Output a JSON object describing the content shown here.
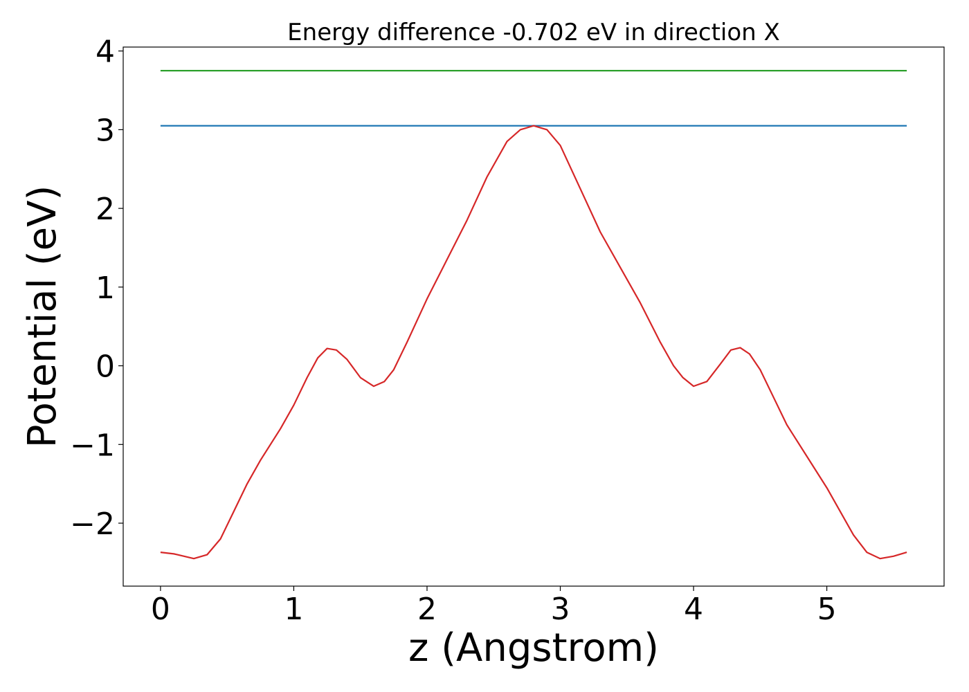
{
  "chart_data": {
    "type": "line",
    "title": "Energy difference -0.702 eV in direction X",
    "xlabel": "z (Angstrom)",
    "ylabel": "Potential (eV)",
    "xlim": [
      -0.28,
      5.88
    ],
    "ylim": [
      -2.8,
      4.05
    ],
    "xticks": [
      0,
      1,
      2,
      3,
      4,
      5
    ],
    "xtick_labels": [
      "0",
      "1",
      "2",
      "3",
      "4",
      "5"
    ],
    "yticks": [
      -2,
      -1,
      0,
      1,
      2,
      3,
      4
    ],
    "ytick_labels": [
      "−2",
      "−1",
      "0",
      "1",
      "2",
      "3",
      "4"
    ],
    "grid": false,
    "series": [
      {
        "color": "#2ca02c",
        "x": [
          0,
          5.6
        ],
        "y": [
          3.75,
          3.75
        ]
      },
      {
        "color": "#1f77b4",
        "x": [
          0,
          5.6
        ],
        "y": [
          3.05,
          3.05
        ]
      },
      {
        "color": "#d62728",
        "x": [
          0,
          0.1,
          0.25,
          0.35,
          0.45,
          0.55,
          0.65,
          0.75,
          0.9,
          1.0,
          1.1,
          1.18,
          1.25,
          1.32,
          1.4,
          1.5,
          1.6,
          1.68,
          1.75,
          1.85,
          2.0,
          2.15,
          2.3,
          2.45,
          2.6,
          2.7,
          2.8,
          2.9,
          3.0,
          3.15,
          3.3,
          3.45,
          3.6,
          3.75,
          3.85,
          3.92,
          4.0,
          4.1,
          4.2,
          4.28,
          4.35,
          4.42,
          4.5,
          4.6,
          4.7,
          4.85,
          5.0,
          5.1,
          5.2,
          5.3,
          5.4,
          5.5,
          5.6
        ],
        "y": [
          -2.37,
          -2.39,
          -2.45,
          -2.4,
          -2.2,
          -1.85,
          -1.5,
          -1.2,
          -0.8,
          -0.5,
          -0.15,
          0.1,
          0.22,
          0.2,
          0.08,
          -0.15,
          -0.26,
          -0.2,
          -0.05,
          0.3,
          0.85,
          1.35,
          1.85,
          2.4,
          2.85,
          3.0,
          3.05,
          3.0,
          2.8,
          2.25,
          1.7,
          1.25,
          0.8,
          0.3,
          0.0,
          -0.15,
          -0.26,
          -0.2,
          0.02,
          0.2,
          0.23,
          0.15,
          -0.05,
          -0.4,
          -0.75,
          -1.15,
          -1.55,
          -1.85,
          -2.15,
          -2.37,
          -2.45,
          -2.42,
          -2.37
        ]
      }
    ]
  }
}
